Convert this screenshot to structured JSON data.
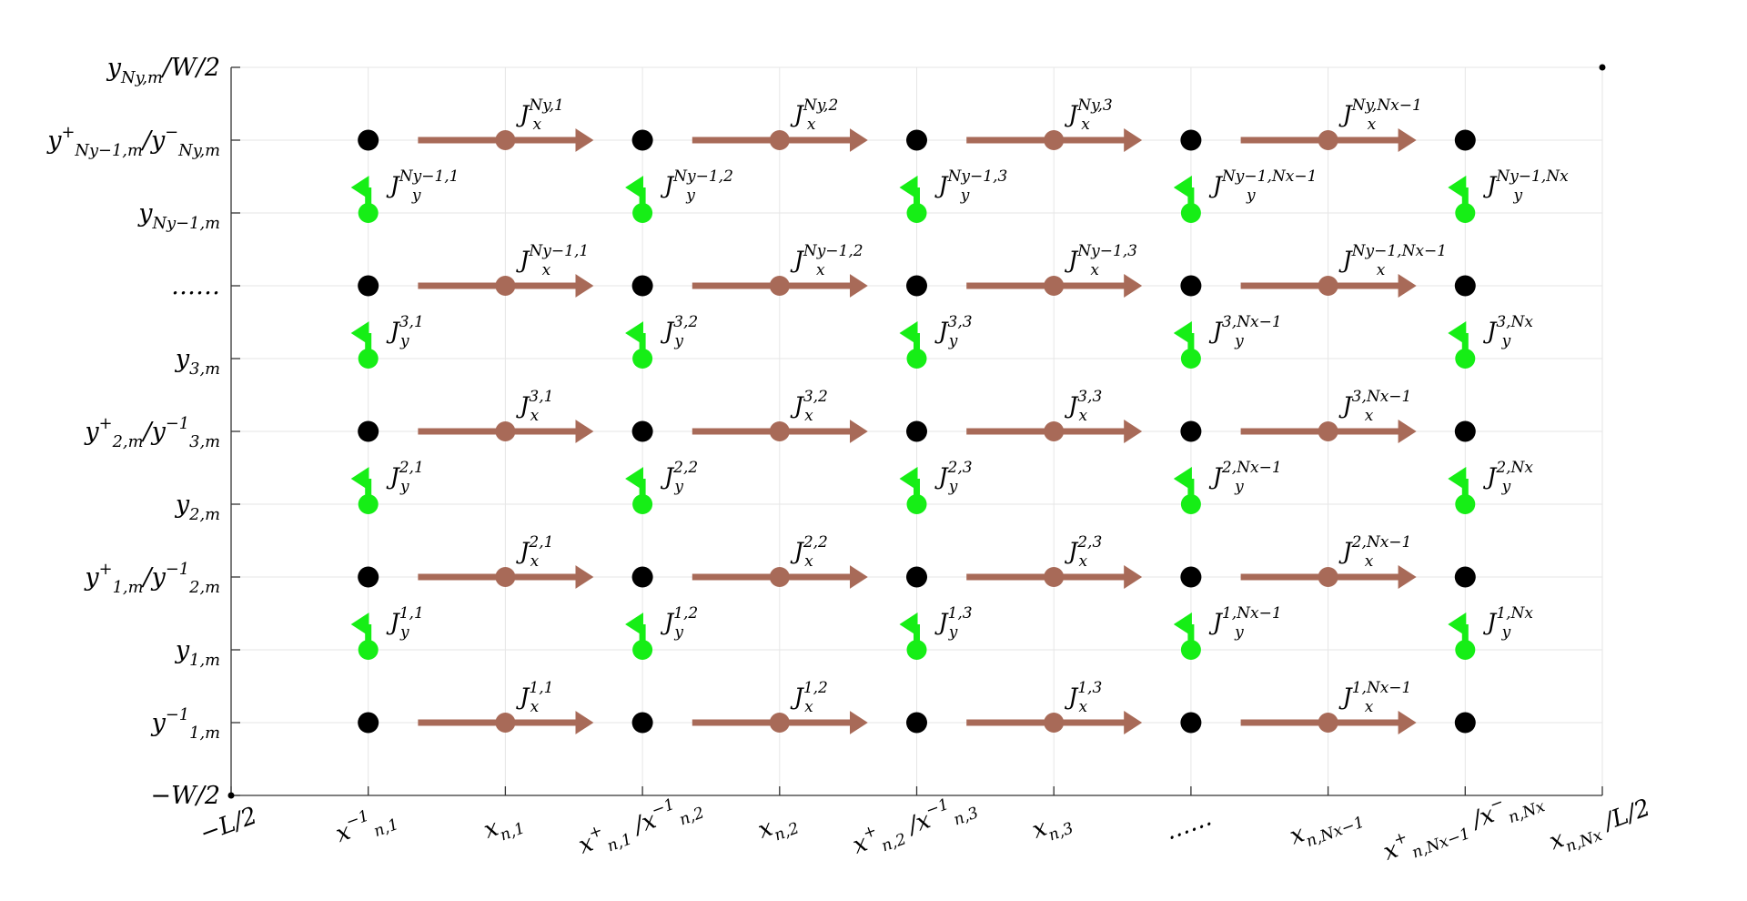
{
  "colors": {
    "grid": "#e6e6e6",
    "axis": "#333333",
    "node": "#000000",
    "jx": "#a86a58",
    "jy": "#16ee16"
  },
  "x_ticks": [
    {
      "key": "mL2",
      "text": "−L/2"
    },
    {
      "key": "x1m",
      "text": "x⁻¹ n,1"
    },
    {
      "key": "x1",
      "text": "x n,1"
    },
    {
      "key": "x12",
      "text": "x⁺ n,1 / x⁻¹ n,2"
    },
    {
      "key": "x2",
      "text": "x n,2"
    },
    {
      "key": "x23",
      "text": "x⁺ n,2 / x⁻¹ n,3"
    },
    {
      "key": "x3",
      "text": "x n,3"
    },
    {
      "key": "xdots",
      "text": "……"
    },
    {
      "key": "xNm1",
      "text": "x n,Nx−1"
    },
    {
      "key": "xNN",
      "text": "x⁺ n,Nx−1 / x⁻ n,Nx"
    },
    {
      "key": "xL2",
      "text": "x n,Nx / L/2"
    }
  ],
  "y_ticks": [
    {
      "key": "mW2",
      "text": "−W/2"
    },
    {
      "key": "y1m1",
      "text": "y⁻¹ 1,m"
    },
    {
      "key": "y1",
      "text": "y 1,m"
    },
    {
      "key": "y12",
      "text": "y⁺ 1,m / y⁻¹ 2,m"
    },
    {
      "key": "y2",
      "text": "y 2,m"
    },
    {
      "key": "y23",
      "text": "y⁺ 2,m / y⁻¹ 3,m"
    },
    {
      "key": "y3",
      "text": "y 3,m"
    },
    {
      "key": "ydots",
      "text": "……"
    },
    {
      "key": "yNm1",
      "text": "y Ny−1,m"
    },
    {
      "key": "yNN",
      "text": "y⁺ Ny−1,m / y⁻ Ny,m"
    },
    {
      "key": "yW2",
      "text": "y Ny,m / W/2"
    }
  ],
  "jx_labels": [
    [
      "J x 1,1",
      "J x 1,2",
      "J x 1,3",
      "J x 1,Nx−1"
    ],
    [
      "J x 2,1",
      "J x 2,2",
      "J x 2,3",
      "J x 2,Nx−1"
    ],
    [
      "J x 3,1",
      "J x 3,2",
      "J x 3,3",
      "J x 3,Nx−1"
    ],
    [
      "J x Ny−1,1",
      "J x Ny−1,2",
      "J x Ny−1,3",
      "J x Ny−1,Nx−1"
    ],
    [
      "J x Ny,1",
      "J x Ny,2",
      "J x Ny,3",
      "J x Ny,Nx−1"
    ]
  ],
  "jy_labels": [
    [
      "J y 1,1",
      "J y 1,2",
      "J y 1,3",
      "J y 1,Nx−1",
      "J y 1,Nx"
    ],
    [
      "J y 2,1",
      "J y 2,2",
      "J y 2,3",
      "J y 2,Nx−1",
      "J y 2,Nx"
    ],
    [
      "J y 3,1",
      "J y 3,2",
      "J y 3,3",
      "J y 3,Nx−1",
      "J y 3,Nx"
    ],
    [
      "J y Ny−1,1",
      "J y Ny−1,2",
      "J y Ny−1,3",
      "J y Ny−1,Nx−1",
      "J y Ny−1,Nx"
    ]
  ]
}
